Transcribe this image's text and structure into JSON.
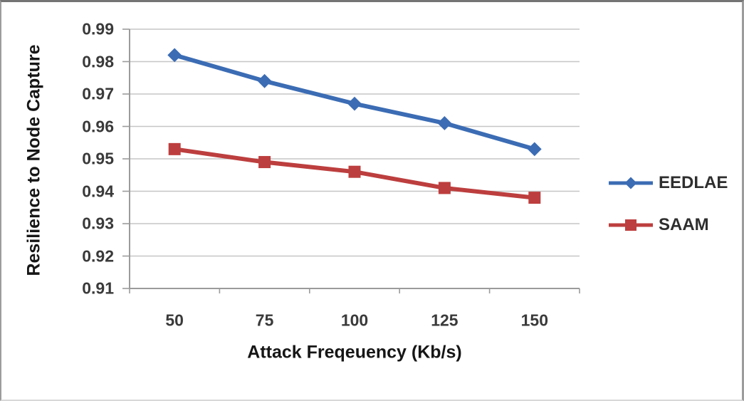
{
  "chart_data": {
    "type": "line",
    "title": "",
    "xlabel": "Attack Freqeuency (Kb/s)",
    "ylabel": "Resilience to Node Capture",
    "categories": [
      "50",
      "75",
      "100",
      "125",
      "150"
    ],
    "series": [
      {
        "name": "EEDLAE",
        "values": [
          0.982,
          0.974,
          0.967,
          0.961,
          0.953
        ],
        "color": "#3b6cb4",
        "marker": "diamond"
      },
      {
        "name": "SAAM",
        "values": [
          0.953,
          0.949,
          0.946,
          0.941,
          0.938
        ],
        "color": "#bd3e3e",
        "marker": "square"
      }
    ],
    "ylim": [
      0.91,
      0.99
    ],
    "ytick_step": 0.01,
    "ytick_labels": [
      "0.99",
      "0.98",
      "0.97",
      "0.96",
      "0.95",
      "0.94",
      "0.93",
      "0.92",
      "0.91"
    ],
    "grid": "horizontal",
    "legend_position": "right"
  },
  "colors": {
    "gridline": "#c6c6c6",
    "axis": "#9b9b9b",
    "tick_text": "#3a3a3a",
    "title_text": "#161616",
    "frame_border": "#8e8e8e",
    "background": "#ffffff"
  }
}
